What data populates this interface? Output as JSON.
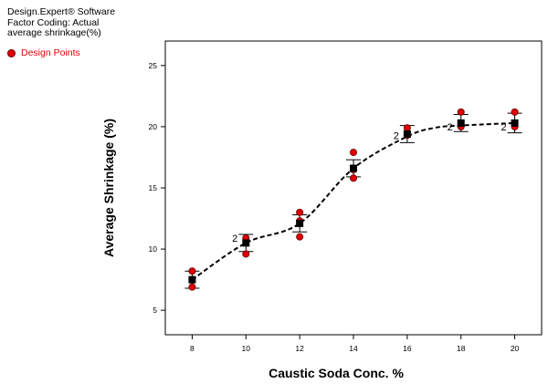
{
  "header": {
    "software": "Design.Expert® Software",
    "coding": "Factor Coding: Actual",
    "response": "average shrinkage(%)"
  },
  "legend": {
    "label": "Design Points",
    "marker_color": "#e00000"
  },
  "chart_data": {
    "type": "scatter",
    "xlabel": "Caustic Soda Conc. %",
    "ylabel": "Average Shrinkage (%)",
    "xlim": [
      7,
      21
    ],
    "ylim": [
      3,
      27
    ],
    "xticks": [
      8,
      10,
      12,
      14,
      16,
      18,
      20
    ],
    "yticks": [
      5,
      10,
      15,
      20,
      25
    ],
    "design_points": [
      {
        "x": 8,
        "y": 8.2
      },
      {
        "x": 8,
        "y": 6.9
      },
      {
        "x": 10,
        "y": 10.9
      },
      {
        "x": 10,
        "y": 9.6
      },
      {
        "x": 12,
        "y": 13.0
      },
      {
        "x": 12,
        "y": 12.3
      },
      {
        "x": 12,
        "y": 11.0
      },
      {
        "x": 14,
        "y": 17.9
      },
      {
        "x": 14,
        "y": 16.5
      },
      {
        "x": 14,
        "y": 15.8
      },
      {
        "x": 16,
        "y": 19.9
      },
      {
        "x": 16,
        "y": 19.3
      },
      {
        "x": 18,
        "y": 21.2
      },
      {
        "x": 18,
        "y": 20.0
      },
      {
        "x": 20,
        "y": 21.2
      },
      {
        "x": 20,
        "y": 20.0
      }
    ],
    "means": [
      {
        "x": 8,
        "y": 7.5,
        "lo": 6.8,
        "hi": 8.2
      },
      {
        "x": 10,
        "y": 10.5,
        "lo": 9.8,
        "hi": 11.2
      },
      {
        "x": 12,
        "y": 12.1,
        "lo": 11.4,
        "hi": 12.8
      },
      {
        "x": 14,
        "y": 16.6,
        "lo": 15.9,
        "hi": 17.3
      },
      {
        "x": 16,
        "y": 19.4,
        "lo": 18.7,
        "hi": 20.1
      },
      {
        "x": 18,
        "y": 20.3,
        "lo": 19.6,
        "hi": 21.0
      },
      {
        "x": 20,
        "y": 20.3,
        "lo": 19.5,
        "hi": 21.1
      }
    ],
    "curve": [
      {
        "x": 8,
        "y": 7.5
      },
      {
        "x": 10,
        "y": 10.5
      },
      {
        "x": 12,
        "y": 12.1
      },
      {
        "x": 14,
        "y": 16.6
      },
      {
        "x": 16,
        "y": 19.2
      },
      {
        "x": 17,
        "y": 19.9
      },
      {
        "x": 18,
        "y": 20.1
      },
      {
        "x": 20,
        "y": 20.3
      }
    ],
    "count_labels": [
      {
        "x": 10,
        "y": 10.9,
        "text": "2"
      },
      {
        "x": 16,
        "y": 19.3,
        "text": "2"
      },
      {
        "x": 18,
        "y": 20.0,
        "text": "2"
      },
      {
        "x": 20,
        "y": 20.0,
        "text": "2"
      }
    ]
  }
}
